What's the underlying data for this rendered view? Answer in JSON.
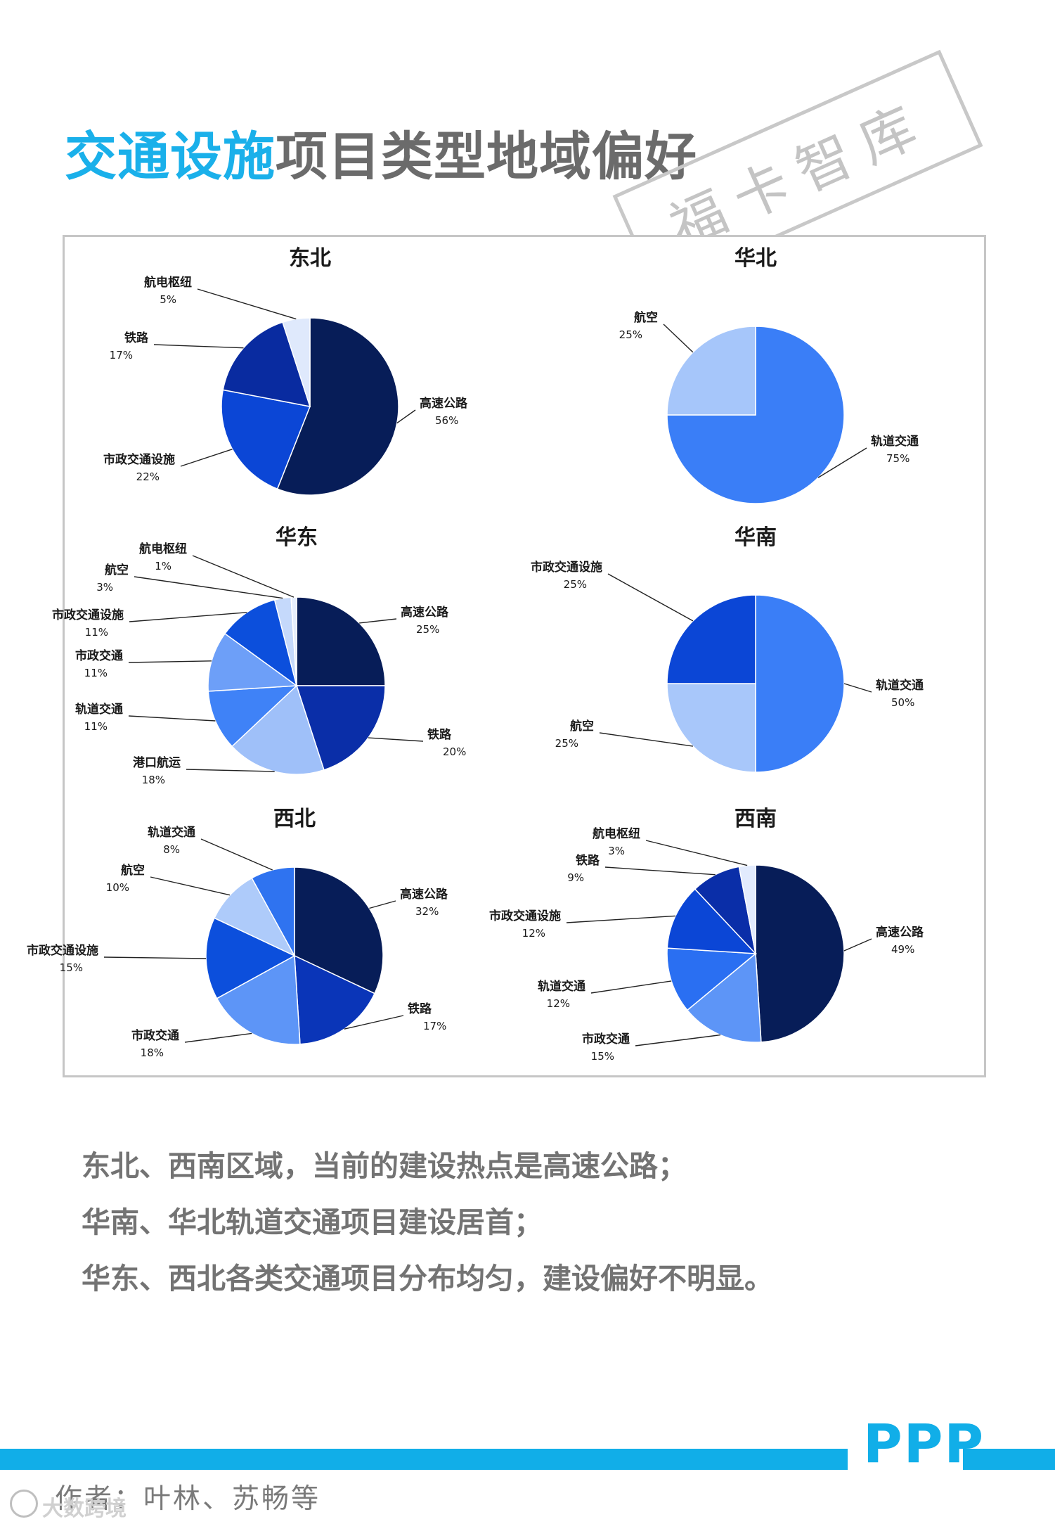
{
  "title": {
    "highlight": "交通设施",
    "rest": "项目类型地域偏好"
  },
  "stamp": "福卡智库",
  "chart_data": [
    {
      "type": "pie",
      "title": "东北",
      "slices": [
        {
          "label": "高速公路",
          "pct": "56%",
          "value": 56,
          "color": "#071d58"
        },
        {
          "label": "市政交通设施",
          "pct": "22%",
          "value": 22,
          "color": "#0b46d6"
        },
        {
          "label": "铁路",
          "pct": "17%",
          "value": 17,
          "color": "#092ba0"
        },
        {
          "label": "航电枢纽",
          "pct": "5%",
          "value": 5,
          "color": "#dfe9fc"
        }
      ]
    },
    {
      "type": "pie",
      "title": "华北",
      "slices": [
        {
          "label": "轨道交通",
          "pct": "75%",
          "value": 75,
          "color": "#3a7ef7"
        },
        {
          "label": "航空",
          "pct": "25%",
          "value": 25,
          "color": "#a6c6fa"
        }
      ]
    },
    {
      "type": "pie",
      "title": "华东",
      "slices": [
        {
          "label": "高速公路",
          "pct": "25%",
          "value": 25,
          "color": "#071d58"
        },
        {
          "label": "铁路",
          "pct": "20%",
          "value": 20,
          "color": "#0a2ea8"
        },
        {
          "label": "港口航运",
          "pct": "18%",
          "value": 18,
          "color": "#9fc0f9"
        },
        {
          "label": "轨道交通",
          "pct": "11%",
          "value": 11,
          "color": "#3f82f7"
        },
        {
          "label": "市政交通",
          "pct": "11%",
          "value": 11,
          "color": "#6d9ff8"
        },
        {
          "label": "市政交通设施",
          "pct": "11%",
          "value": 11,
          "color": "#0c4fdc"
        },
        {
          "label": "航空",
          "pct": "3%",
          "value": 3,
          "color": "#c5d9fb"
        },
        {
          "label": "航电枢纽",
          "pct": "1%",
          "value": 1,
          "color": "#e6eefd"
        }
      ]
    },
    {
      "type": "pie",
      "title": "华南",
      "slices": [
        {
          "label": "轨道交通",
          "pct": "50%",
          "value": 50,
          "color": "#3a7ef7"
        },
        {
          "label": "航空",
          "pct": "25%",
          "value": 25,
          "color": "#a8c7fa"
        },
        {
          "label": "市政交通设施",
          "pct": "25%",
          "value": 25,
          "color": "#0b46d6"
        }
      ]
    },
    {
      "type": "pie",
      "title": "西北",
      "slices": [
        {
          "label": "高速公路",
          "pct": "32%",
          "value": 32,
          "color": "#071d58"
        },
        {
          "label": "铁路",
          "pct": "17%",
          "value": 17,
          "color": "#0a35b8"
        },
        {
          "label": "市政交通",
          "pct": "18%",
          "value": 18,
          "color": "#5d95f7"
        },
        {
          "label": "市政交通设施",
          "pct": "15%",
          "value": 15,
          "color": "#0c4fdc"
        },
        {
          "label": "航空",
          "pct": "10%",
          "value": 10,
          "color": "#aecbfa"
        },
        {
          "label": "轨道交通",
          "pct": "8%",
          "value": 8,
          "color": "#2f73f0"
        }
      ]
    },
    {
      "type": "pie",
      "title": "西南",
      "slices": [
        {
          "label": "高速公路",
          "pct": "49%",
          "value": 49,
          "color": "#071d58"
        },
        {
          "label": "市政交通",
          "pct": "15%",
          "value": 15,
          "color": "#5d95f7"
        },
        {
          "label": "轨道交通",
          "pct": "12%",
          "value": 12,
          "color": "#2a6ff2"
        },
        {
          "label": "市政交通设施",
          "pct": "12%",
          "value": 12,
          "color": "#0b46d6"
        },
        {
          "label": "铁路",
          "pct": "9%",
          "value": 9,
          "color": "#0a2ea8"
        },
        {
          "label": "航电枢纽",
          "pct": "3%",
          "value": 3,
          "color": "#e2ebfd"
        }
      ]
    }
  ],
  "conclusions": [
    "东北、西南区域，当前的建设热点是高速公路；",
    "华南、华北轨道交通项目建设居首；",
    "华东、西北各类交通项目分布均匀，建设偏好不明显。"
  ],
  "footer": {
    "brand": "PPP",
    "author": "作者：叶林、苏畅等",
    "watermark": "大数跨境"
  }
}
